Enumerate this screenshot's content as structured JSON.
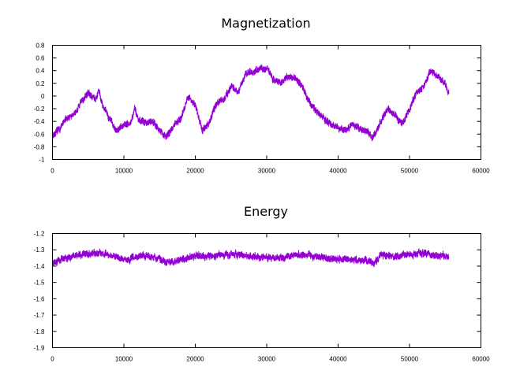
{
  "chart_data": [
    {
      "type": "line",
      "title": "Magnetization",
      "xlabel": "",
      "ylabel": "",
      "xlim": [
        0,
        60000
      ],
      "ylim": [
        -1,
        0.8
      ],
      "x_ticks": [
        0,
        10000,
        20000,
        30000,
        40000,
        50000,
        60000
      ],
      "y_ticks": [
        -1,
        -0.8,
        -0.6,
        -0.4,
        -0.2,
        0,
        0.2,
        0.4,
        0.6,
        0.8
      ],
      "grid": false,
      "legend": "none",
      "color": "#9400d3",
      "noise_amplitude": 0.09,
      "series": [
        {
          "x": [
            0,
            1000,
            2000,
            3000,
            4000,
            5000,
            6000,
            6500,
            7000,
            8000,
            9000,
            10000,
            11000,
            11500,
            12000,
            13000,
            14000,
            15000,
            16000,
            17000,
            18000,
            19000,
            20000,
            21000,
            22000,
            23000,
            24000,
            25000,
            26000,
            27000,
            28000,
            29000,
            30000,
            31000,
            32000,
            33000,
            34000,
            35000,
            36000,
            37000,
            38000,
            39000,
            40000,
            41000,
            42000,
            43000,
            44000,
            45000,
            46000,
            47000,
            48000,
            49000,
            50000,
            51000,
            52000,
            53000,
            54000,
            55000,
            55500
          ],
          "y": [
            -0.62,
            -0.52,
            -0.35,
            -0.3,
            -0.1,
            0.05,
            -0.05,
            0.08,
            -0.15,
            -0.35,
            -0.55,
            -0.45,
            -0.42,
            -0.2,
            -0.35,
            -0.42,
            -0.38,
            -0.55,
            -0.65,
            -0.45,
            -0.35,
            0.0,
            -0.15,
            -0.55,
            -0.4,
            -0.1,
            -0.05,
            0.15,
            0.05,
            0.35,
            0.38,
            0.42,
            0.45,
            0.25,
            0.22,
            0.3,
            0.3,
            0.15,
            -0.1,
            -0.25,
            -0.35,
            -0.45,
            -0.5,
            -0.55,
            -0.45,
            -0.5,
            -0.55,
            -0.65,
            -0.4,
            -0.2,
            -0.3,
            -0.45,
            -0.2,
            0.05,
            0.15,
            0.4,
            0.3,
            0.2,
            0.05
          ]
        }
      ]
    },
    {
      "type": "line",
      "title": "Energy",
      "xlabel": "",
      "ylabel": "",
      "xlim": [
        0,
        60000
      ],
      "ylim": [
        -1.9,
        -1.2
      ],
      "x_ticks": [
        0,
        10000,
        20000,
        30000,
        40000,
        50000,
        60000
      ],
      "y_ticks": [
        -1.9,
        -1.8,
        -1.7,
        -1.6,
        -1.5,
        -1.4,
        -1.3,
        -1.2
      ],
      "grid": false,
      "legend": "none",
      "color": "#9400d3",
      "noise_amplitude": 0.035,
      "series": [
        {
          "x": [
            0,
            2000,
            4000,
            6000,
            8000,
            10000,
            12000,
            14000,
            16000,
            18000,
            20000,
            22000,
            24000,
            26000,
            28000,
            30000,
            32000,
            34000,
            36000,
            38000,
            40000,
            42000,
            44000,
            45000,
            46000,
            48000,
            50000,
            52000,
            54000,
            55500
          ],
          "y": [
            -1.38,
            -1.35,
            -1.33,
            -1.32,
            -1.33,
            -1.36,
            -1.34,
            -1.34,
            -1.38,
            -1.36,
            -1.34,
            -1.34,
            -1.33,
            -1.33,
            -1.34,
            -1.35,
            -1.35,
            -1.33,
            -1.33,
            -1.35,
            -1.36,
            -1.36,
            -1.37,
            -1.38,
            -1.33,
            -1.34,
            -1.33,
            -1.32,
            -1.34,
            -1.34
          ]
        }
      ]
    }
  ]
}
